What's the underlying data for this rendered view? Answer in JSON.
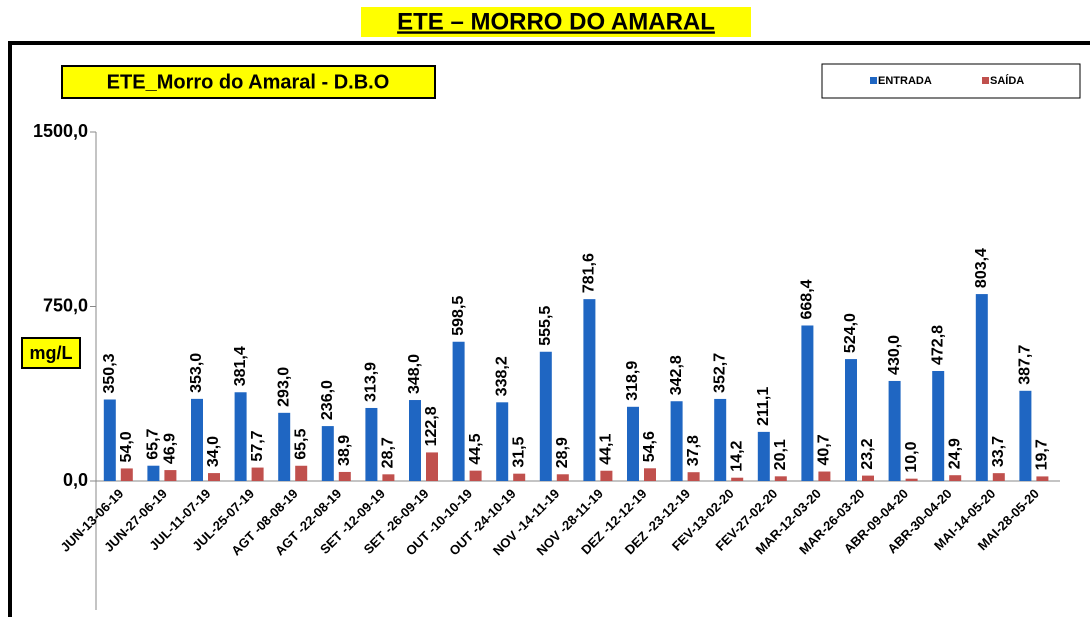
{
  "page_title": "ETE – MORRO DO AMARAL",
  "chart_data": {
    "type": "bar",
    "title": "ETE_Morro do Amaral - D.B.O",
    "y_label": "mg/L",
    "categories": [
      "JUN-13-06-19",
      "JUN-27-06-19",
      "JUL-11-07-19",
      "JUL-25-07-19",
      "AGT -08-08-19",
      "AGT -22-08-19",
      "SET -12-09-19",
      "SET -26-09-19",
      "OUT -10-10-19",
      "OUT -24-10-19",
      "NOV -14-11-19",
      "NOV -28-11-19",
      "DEZ -12-12-19",
      "DEZ -23-12-19",
      "FEV-13-02-20",
      "FEV-27-02-20",
      "MAR-12-03-20",
      "MAR-26-03-20",
      "ABR-09-04-20",
      "ABR-30-04-20",
      "MAI-14-05-20",
      "MAI-28-05-20"
    ],
    "series": [
      {
        "name": "ENTRADA",
        "color": "#1f66c2",
        "values": [
          350.3,
          65.7,
          353.0,
          381.4,
          293.0,
          236.0,
          313.9,
          348.0,
          598.5,
          338.2,
          555.5,
          781.6,
          318.9,
          342.8,
          352.7,
          211.1,
          668.4,
          524.0,
          430.0,
          472.8,
          803.4,
          387.7
        ],
        "value_labels": [
          "350,3",
          "65,7",
          "353,0",
          "381,4",
          "293,0",
          "236,0",
          "313,9",
          "348,0",
          "598,5",
          "338,2",
          "555,5",
          "781,6",
          "318,9",
          "342,8",
          "352,7",
          "211,1",
          "668,4",
          "524,0",
          "430,0",
          "472,8",
          "803,4",
          "387,7"
        ]
      },
      {
        "name": "SAÍDA",
        "color": "#c0504d",
        "values": [
          54.0,
          46.9,
          34.0,
          57.7,
          65.5,
          38.9,
          28.7,
          122.8,
          44.5,
          31.5,
          28.9,
          44.1,
          54.6,
          37.8,
          14.2,
          20.1,
          40.7,
          23.2,
          10.0,
          24.9,
          33.7,
          19.7
        ],
        "value_labels": [
          "54,0",
          "46,9",
          "34,0",
          "57,7",
          "65,5",
          "38,9",
          "28,7",
          "122,8",
          "44,5",
          "31,5",
          "28,9",
          "44,1",
          "54,6",
          "37,8",
          "14,2",
          "20,1",
          "40,7",
          "23,2",
          "10,0",
          "24,9",
          "33,7",
          "19,7"
        ]
      }
    ],
    "ylim": [
      0,
      1500
    ],
    "yticks": [
      {
        "value": 0,
        "label": "0,0"
      },
      {
        "value": 750,
        "label": "750,0"
      },
      {
        "value": 1500,
        "label": "1500,0"
      }
    ],
    "legend": "top-right"
  }
}
